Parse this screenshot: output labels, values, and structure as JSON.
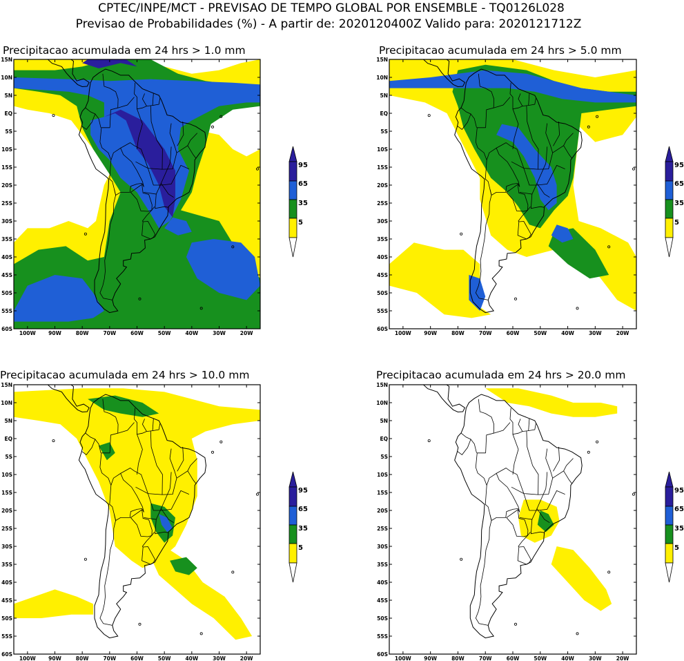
{
  "header": {
    "title_line1": "CPTEC/INPE/MCT - PREVISAO DE TEMPO GLOBAL POR ENSEMBLE - TQ0126L028",
    "title_line2": "Previsao de Probabilidades (%) -  A partir de: 2020120400Z  Valido para: 2020121712Z"
  },
  "panels": [
    {
      "title": "Precipitacao acumulada em 24 hrs > 1.0 mm",
      "intensity": 4
    },
    {
      "title": "Precipitacao acumulada em 24 hrs > 5.0 mm",
      "intensity": 3
    },
    {
      "title": "Precipitacao acumulada em 24 hrs > 10.0 mm",
      "intensity": 2
    },
    {
      "title": "Precipitacao acumulada em 24 hrs > 20.0 mm",
      "intensity": 1
    }
  ],
  "lat_labels": [
    "15N",
    "10N",
    "5N",
    "EQ",
    "5S",
    "10S",
    "15S",
    "20S",
    "25S",
    "30S",
    "35S",
    "40S",
    "45S",
    "50S",
    "55S",
    "60S"
  ],
  "lon_labels": [
    "100W",
    "90W",
    "80W",
    "70W",
    "60W",
    "50W",
    "40W",
    "30W",
    "20W"
  ],
  "legend": {
    "labels": [
      "95",
      "65",
      "35",
      "5"
    ],
    "colors": {
      "over95": "#2a1e9c",
      "c65_95": "#1f5fd6",
      "c35_65": "#17901e",
      "c5_35": "#fff000",
      "under5": "#ffffff"
    }
  }
}
